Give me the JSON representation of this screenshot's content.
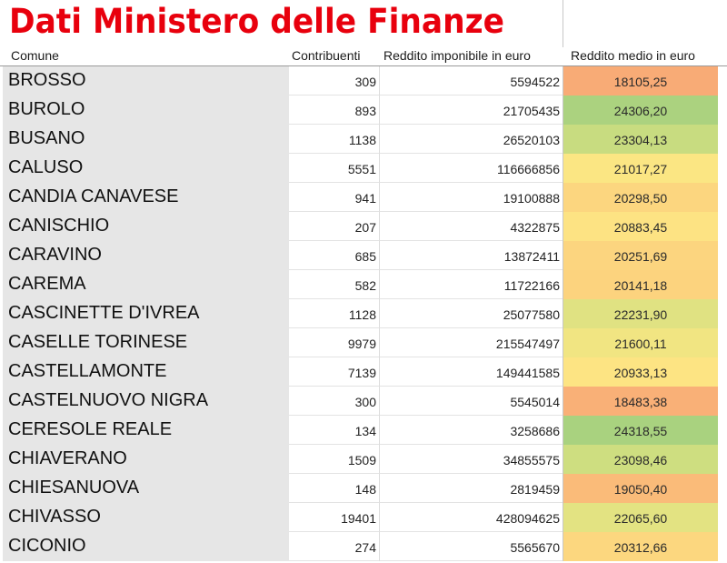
{
  "title": "Dati Ministero delle Finanze",
  "columns": {
    "comune": "Comune",
    "contribuenti": "Contribuenti",
    "reddito_imponibile": "Reddito imponibile in euro",
    "reddito_medio": "Reddito medio in euro"
  },
  "colors": {
    "title": "#e8000d",
    "scale_low": "#f8a873",
    "scale_mid": "#fbe683",
    "scale_high": "#a9d27f"
  },
  "rows": [
    {
      "comune": "BROSSO",
      "contribuenti": "309",
      "reddito_imponibile": "5594522",
      "reddito_medio": "18105,25",
      "color": "#f8ab76"
    },
    {
      "comune": "BUROLO",
      "contribuenti": "893",
      "reddito_imponibile": "21705435",
      "reddito_medio": "24306,20",
      "color": "#abd27f"
    },
    {
      "comune": "BUSANO",
      "contribuenti": "1138",
      "reddito_imponibile": "26520103",
      "reddito_medio": "23304,13",
      "color": "#c8dc80"
    },
    {
      "comune": "CALUSO",
      "contribuenti": "5551",
      "reddito_imponibile": "116666856",
      "reddito_medio": "21017,27",
      "color": "#fbe683"
    },
    {
      "comune": "CANDIA CANAVESE",
      "contribuenti": "941",
      "reddito_imponibile": "19100888",
      "reddito_medio": "20298,50",
      "color": "#fcd67f"
    },
    {
      "comune": "CANISCHIO",
      "contribuenti": "207",
      "reddito_imponibile": "4322875",
      "reddito_medio": "20883,45",
      "color": "#fde383"
    },
    {
      "comune": "CARAVINO",
      "contribuenti": "685",
      "reddito_imponibile": "13872411",
      "reddito_medio": "20251,69",
      "color": "#fcd57f"
    },
    {
      "comune": "CAREMA",
      "contribuenti": "582",
      "reddito_imponibile": "11722166",
      "reddito_medio": "20141,18",
      "color": "#fcd37e"
    },
    {
      "comune": "CASCINETTE D'IVREA",
      "contribuenti": "1128",
      "reddito_imponibile": "25077580",
      "reddito_medio": "22231,90",
      "color": "#e0e282"
    },
    {
      "comune": "CASELLE TORINESE",
      "contribuenti": "9979",
      "reddito_imponibile": "215547497",
      "reddito_medio": "21600,11",
      "color": "#f1e582"
    },
    {
      "comune": "CASTELLAMONTE",
      "contribuenti": "7139",
      "reddito_imponibile": "149441585",
      "reddito_medio": "20933,13",
      "color": "#fde483"
    },
    {
      "comune": "CASTELNUOVO NIGRA",
      "contribuenti": "300",
      "reddito_imponibile": "5545014",
      "reddito_medio": "18483,38",
      "color": "#f9b077"
    },
    {
      "comune": "CERESOLE REALE",
      "contribuenti": "134",
      "reddito_imponibile": "3258686",
      "reddito_medio": "24318,55",
      "color": "#a9d27f"
    },
    {
      "comune": "CHIAVERANO",
      "contribuenti": "1509",
      "reddito_imponibile": "34855575",
      "reddito_medio": "23098,46",
      "color": "#cede80"
    },
    {
      "comune": "CHIESANUOVA",
      "contribuenti": "148",
      "reddito_imponibile": "2819459",
      "reddito_medio": "19050,40",
      "color": "#fabb79"
    },
    {
      "comune": "CHIVASSO",
      "contribuenti": "19401",
      "reddito_imponibile": "428094625",
      "reddito_medio": "22065,60",
      "color": "#e3e382"
    },
    {
      "comune": "CICONIO",
      "contribuenti": "274",
      "reddito_imponibile": "5565670",
      "reddito_medio": "20312,66",
      "color": "#fcd77f"
    }
  ]
}
